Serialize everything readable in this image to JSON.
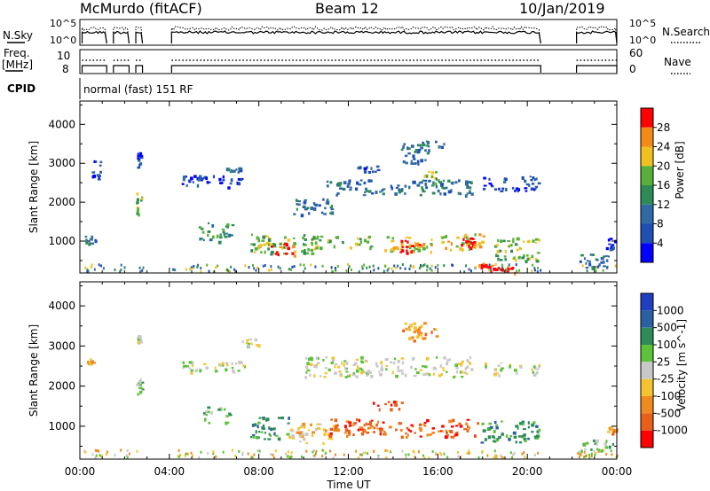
{
  "header": {
    "station": "McMurdo (fitACF)",
    "beam": "Beam 12",
    "date": "10/Jan/2019"
  },
  "top_panels": {
    "nsky_label": "N.Sky",
    "nsearch_label": "N.Search",
    "nsky_ticks": [
      "10^5",
      "10^0"
    ],
    "nsearch_ticks": [
      "10^5",
      "10^0"
    ],
    "freq_label_1": "Freq.",
    "freq_label_2": "[MHz]",
    "freq_ticks": [
      "10",
      "8"
    ],
    "nave_label": "Nave",
    "nave_ticks": [
      "60",
      "0"
    ],
    "cpid_label": "CPID",
    "cpid_value": "normal (fast) 151 RF"
  },
  "chart_data": [
    {
      "type": "heatmap",
      "name": "power",
      "ylabel": "Slant Range [km]",
      "xlabel": "",
      "yticks": [
        1000,
        2000,
        3000,
        4000
      ],
      "ylim": [
        180,
        4600
      ],
      "colorbar": {
        "label": "Power [dB]",
        "ticks": [
          "4",
          "8",
          "12",
          "16",
          "20",
          "24",
          "28"
        ],
        "colors": [
          "#0000ff",
          "#1f4fb4",
          "#2f6aa4",
          "#2e8b57",
          "#58b03a",
          "#f0c020",
          "#f58a1a",
          "#ff0000"
        ]
      },
      "echo_regions": [
        {
          "t0": 0.2,
          "t1": 0.7,
          "r0": 950,
          "r1": 1150,
          "level": 2
        },
        {
          "t0": 0.5,
          "t1": 0.9,
          "r0": 2400,
          "r1": 3100,
          "level": 1
        },
        {
          "t0": 2.5,
          "t1": 2.75,
          "r0": 1700,
          "r1": 2300,
          "level": 4
        },
        {
          "t0": 2.55,
          "t1": 2.7,
          "r0": 2900,
          "r1": 3300,
          "level": 1
        },
        {
          "t0": 4.5,
          "t1": 7.5,
          "r0": 2400,
          "r1": 2700,
          "level": 1
        },
        {
          "t0": 5.3,
          "t1": 6.8,
          "r0": 1000,
          "r1": 1500,
          "level": 3
        },
        {
          "t0": 6.5,
          "t1": 7.2,
          "r0": 2800,
          "r1": 2900,
          "level": 2
        },
        {
          "t0": 7.5,
          "t1": 10.5,
          "r0": 700,
          "r1": 1200,
          "level": 4
        },
        {
          "t0": 8.5,
          "t1": 9.6,
          "r0": 650,
          "r1": 1000,
          "level": 7
        },
        {
          "t0": 9.5,
          "t1": 11.5,
          "r0": 1700,
          "r1": 2100,
          "level": 2
        },
        {
          "t0": 10.3,
          "t1": 13.0,
          "r0": 850,
          "r1": 1150,
          "level": 4
        },
        {
          "t0": 11.0,
          "t1": 17.5,
          "r0": 2200,
          "r1": 2600,
          "level": 2
        },
        {
          "t0": 12.3,
          "t1": 13.3,
          "r0": 2800,
          "r1": 3000,
          "level": 1
        },
        {
          "t0": 13.5,
          "t1": 15.8,
          "r0": 750,
          "r1": 1150,
          "level": 5
        },
        {
          "t0": 14.2,
          "t1": 15.3,
          "r0": 700,
          "r1": 1050,
          "level": 7
        },
        {
          "t0": 14.3,
          "t1": 15.6,
          "r0": 3000,
          "r1": 3550,
          "level": 2
        },
        {
          "t0": 15.0,
          "t1": 16.5,
          "r0": 3400,
          "r1": 3600,
          "level": 2
        },
        {
          "t0": 15.3,
          "t1": 16.0,
          "r0": 2500,
          "r1": 2800,
          "level": 4
        },
        {
          "t0": 16.0,
          "t1": 18.0,
          "r0": 800,
          "r1": 1200,
          "level": 5
        },
        {
          "t0": 17.0,
          "t1": 17.8,
          "r0": 850,
          "r1": 1100,
          "level": 7
        },
        {
          "t0": 17.8,
          "t1": 18.4,
          "r0": 350,
          "r1": 450,
          "level": 7
        },
        {
          "t0": 18.0,
          "t1": 20.5,
          "r0": 2300,
          "r1": 2700,
          "level": 1
        },
        {
          "t0": 18.3,
          "t1": 19.5,
          "r0": 200,
          "r1": 400,
          "level": 7
        },
        {
          "t0": 18.5,
          "t1": 20.5,
          "r0": 500,
          "r1": 1100,
          "level": 4
        },
        {
          "t0": 22.3,
          "t1": 23.8,
          "r0": 300,
          "r1": 700,
          "level": 2
        },
        {
          "t0": 23.5,
          "t1": 24.0,
          "r0": 800,
          "r1": 1100,
          "level": 1
        }
      ]
    },
    {
      "type": "heatmap",
      "name": "velocity",
      "ylabel": "Slant Range [km]",
      "xlabel": "Time UT",
      "yticks": [
        1000,
        2000,
        3000,
        4000
      ],
      "ylim": [
        180,
        4600
      ],
      "xticks": [
        "00:00",
        "04:00",
        "08:00",
        "12:00",
        "16:00",
        "20:00",
        "00:00"
      ],
      "colorbar": {
        "label": "Velocity [m s^-1]",
        "ticks": [
          "1000",
          "500",
          "100",
          "25",
          "-25",
          "-100",
          "-500",
          "-1000"
        ],
        "colors": [
          "#1f3fc0",
          "#2a5fa0",
          "#2e8b57",
          "#5cc23a",
          "#c8c8c8",
          "#f4c430",
          "#f08a20",
          "#e8601a",
          "#ff0000"
        ]
      },
      "echo_regions": [
        {
          "t0": 0.3,
          "t1": 0.6,
          "r0": 2550,
          "r1": 2700,
          "level": 6
        },
        {
          "t0": 2.5,
          "t1": 2.75,
          "r0": 1800,
          "r1": 2300,
          "level": 3
        },
        {
          "t0": 2.55,
          "t1": 2.7,
          "r0": 3100,
          "r1": 3300,
          "level": 4
        },
        {
          "t0": 4.5,
          "t1": 7.5,
          "r0": 2350,
          "r1": 2650,
          "level": 4
        },
        {
          "t0": 5.5,
          "t1": 6.7,
          "r0": 1100,
          "r1": 1500,
          "level": 3
        },
        {
          "t0": 7.2,
          "t1": 8.0,
          "r0": 3000,
          "r1": 3200,
          "level": 4
        },
        {
          "t0": 7.5,
          "t1": 9.3,
          "r0": 700,
          "r1": 1250,
          "level": 2
        },
        {
          "t0": 9.3,
          "t1": 11.5,
          "r0": 600,
          "r1": 1100,
          "level": 5
        },
        {
          "t0": 10.0,
          "t1": 17.5,
          "r0": 2250,
          "r1": 2750,
          "level": 4
        },
        {
          "t0": 11.0,
          "t1": 17.8,
          "r0": 750,
          "r1": 1200,
          "level": 7
        },
        {
          "t0": 13.0,
          "t1": 14.5,
          "r0": 1450,
          "r1": 1650,
          "level": 7
        },
        {
          "t0": 14.3,
          "t1": 16.0,
          "r0": 3150,
          "r1": 3500,
          "level": 6
        },
        {
          "t0": 14.5,
          "t1": 15.5,
          "r0": 3400,
          "r1": 3600,
          "level": 5
        },
        {
          "t0": 17.8,
          "t1": 20.5,
          "r0": 600,
          "r1": 1150,
          "level": 2
        },
        {
          "t0": 18.0,
          "t1": 20.5,
          "r0": 2300,
          "r1": 2600,
          "level": 4
        },
        {
          "t0": 22.3,
          "t1": 23.8,
          "r0": 400,
          "r1": 700,
          "level": 3
        },
        {
          "t0": 23.5,
          "t1": 24.0,
          "r0": 800,
          "r1": 1000,
          "level": 6
        }
      ]
    }
  ]
}
